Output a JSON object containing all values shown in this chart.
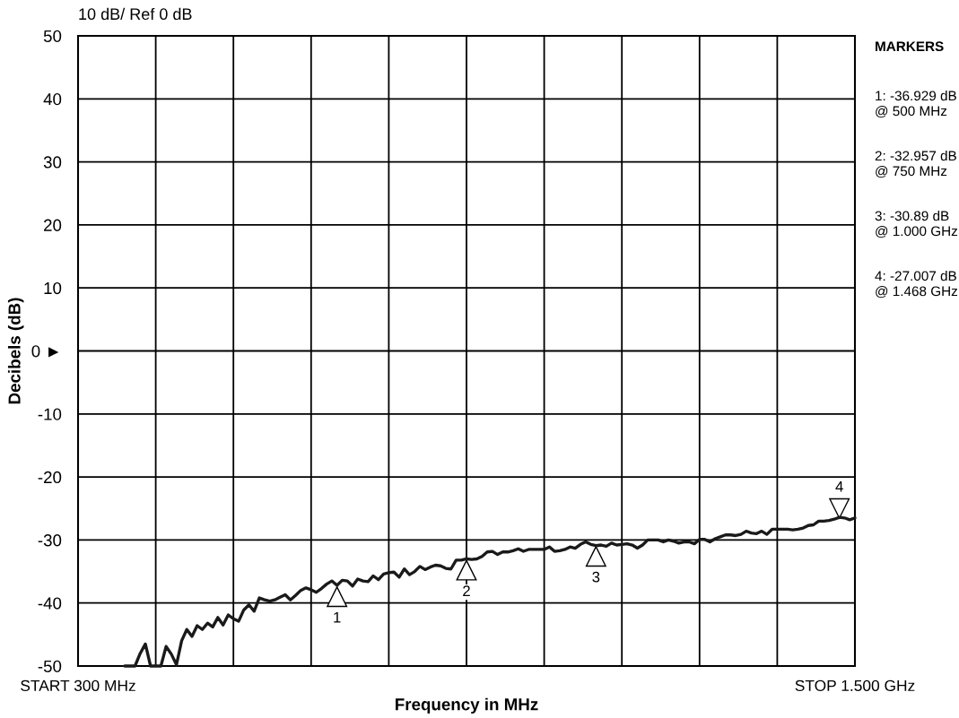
{
  "chart_data": {
    "type": "line",
    "title": "10 dB/ Ref 0 dB",
    "xlabel": "Frequency in MHz",
    "ylabel": "Decibels (dB)",
    "categories": [
      "START 300 MHz",
      null,
      null,
      null,
      null,
      null,
      null,
      null,
      null,
      null,
      null,
      null,
      null,
      null,
      null,
      null,
      null,
      null,
      null,
      null,
      null,
      null,
      null,
      null,
      null,
      null,
      null,
      null,
      null,
      null,
      null,
      null,
      null,
      null,
      null,
      null,
      null,
      null,
      null,
      null,
      null,
      null,
      null,
      null,
      null,
      null,
      null,
      null,
      null,
      null,
      null,
      null,
      null,
      null,
      null,
      null,
      null,
      null,
      null,
      null,
      null,
      null,
      null,
      null,
      null,
      null,
      null,
      null,
      null,
      null,
      null,
      null,
      null,
      null,
      null,
      null,
      null,
      null,
      null,
      null,
      null,
      null,
      null,
      null,
      null,
      null,
      null,
      null,
      null,
      null,
      null,
      null,
      null,
      null,
      null,
      null,
      null,
      null,
      null,
      null,
      null,
      null,
      null,
      null,
      null,
      null,
      null,
      null,
      null,
      null,
      null,
      null,
      null,
      null,
      null,
      null,
      null,
      null,
      null,
      null,
      null,
      null,
      null,
      null,
      null,
      null,
      null,
      null,
      null,
      null,
      null,
      null,
      null,
      null,
      null,
      null,
      null,
      null,
      null,
      null,
      null,
      null,
      null,
      null,
      null,
      null,
      null,
      null,
      null,
      null,
      "STOP 1.500 GHz"
    ],
    "ylim": [
      -50,
      50
    ],
    "yticks": [
      -50,
      -40,
      -30,
      -20,
      -10,
      {
        "value": 0,
        "label": "0 ►"
      },
      10,
      20,
      30,
      40,
      50
    ],
    "grid": true,
    "series": [
      {
        "color": "#1a1a1a",
        "values": [
          null,
          null,
          null,
          null,
          null,
          null,
          null,
          null,
          null,
          -50,
          -50,
          -50,
          -48.0,
          -46.5,
          -50,
          -50,
          -50,
          -46.9,
          -48.1,
          -49.8,
          -46.0,
          -44.2,
          -45.3,
          -43.6,
          -44.2,
          -43.2,
          -43.8,
          -42.3,
          -43.5,
          -41.9,
          -42.5,
          -42.9,
          -41.1,
          -40.3,
          -41.3,
          -39.2,
          -39.5,
          -39.7,
          -39.5,
          -39.1,
          -38.7,
          -39.5,
          -38.8,
          -38.0,
          -37.6,
          -37.9,
          -38.3,
          -37.7,
          -37.0,
          -36.5,
          -37.2,
          -36.4,
          -36.5,
          -37.3,
          -36.2,
          -36.5,
          -36.6,
          -35.7,
          -36.3,
          -35.4,
          -35.2,
          -35.1,
          -35.9,
          -34.6,
          -35.5,
          -35.0,
          -34.2,
          -34.7,
          -34.3,
          -34.0,
          -34.1,
          -34.5,
          -34.6,
          -33.2,
          -33.2,
          -33.0,
          -33.1,
          -33.0,
          -32.6,
          -31.9,
          -31.8,
          -32.3,
          -31.9,
          -31.9,
          -31.7,
          -31.4,
          -31.8,
          -31.5,
          -31.5,
          -31.5,
          -31.5,
          -31.1,
          -31.8,
          -31.7,
          -31.5,
          -31.1,
          -31.3,
          -30.7,
          -30.3,
          -30.7,
          -30.9,
          -30.8,
          -31.0,
          -30.5,
          -30.8,
          -30.7,
          -30.6,
          -30.8,
          -31.3,
          -30.8,
          -30.0,
          -30.0,
          -30.0,
          -30.3,
          -30.0,
          -30.2,
          -30.5,
          -30.3,
          -30.3,
          -30.6,
          -29.9,
          -29.9,
          -30.3,
          -29.8,
          -29.5,
          -29.2,
          -29.2,
          -29.3,
          -29.1,
          -28.6,
          -28.9,
          -29.0,
          -28.6,
          -29.1,
          -28.3,
          -28.3,
          -28.3,
          -28.3,
          -28.4,
          -28.3,
          -28.1,
          -27.7,
          -27.6,
          -27.0,
          -27.0,
          -26.9,
          -26.7,
          -26.4,
          -26.5,
          -26.8,
          -26.5
        ]
      },
      {
        "name": "1",
        "type": "scatter",
        "marker": "triangle",
        "color": "#000000",
        "values": [
          null,
          null,
          null,
          null,
          null,
          null,
          null,
          null,
          null,
          null,
          null,
          null,
          null,
          null,
          null,
          null,
          null,
          null,
          null,
          null,
          null,
          null,
          null,
          null,
          null,
          null,
          null,
          null,
          null,
          null,
          null,
          null,
          null,
          null,
          null,
          null,
          null,
          null,
          null,
          null,
          null,
          null,
          null,
          null,
          null,
          null,
          null,
          null,
          null,
          null,
          -39.0,
          null,
          null,
          null,
          null,
          null,
          null,
          null,
          null,
          null,
          null,
          null,
          null,
          null,
          null,
          null,
          null,
          null,
          null,
          null,
          null,
          null,
          null,
          null,
          null,
          null,
          null,
          null,
          null,
          null,
          null,
          null,
          null,
          null,
          null,
          null,
          null,
          null,
          null,
          null,
          null,
          null,
          null,
          null,
          null,
          null,
          null,
          null,
          null,
          null,
          null,
          null,
          null,
          null,
          null,
          null,
          null,
          null,
          null,
          null,
          null,
          null,
          null,
          null,
          null,
          null,
          null,
          null,
          null,
          null,
          null,
          null,
          null,
          null,
          null,
          null,
          null,
          null,
          null,
          null,
          null,
          null,
          null,
          null,
          null,
          null,
          null,
          null,
          null,
          null,
          null,
          null,
          null,
          null,
          null,
          null,
          null,
          null,
          null,
          null,
          null
        ]
      },
      {
        "name": "2",
        "type": "scatter",
        "marker": "triangle",
        "color": "#000000",
        "values": [
          null,
          null,
          null,
          null,
          null,
          null,
          null,
          null,
          null,
          null,
          null,
          null,
          null,
          null,
          null,
          null,
          null,
          null,
          null,
          null,
          null,
          null,
          null,
          null,
          null,
          null,
          null,
          null,
          null,
          null,
          null,
          null,
          null,
          null,
          null,
          null,
          null,
          null,
          null,
          null,
          null,
          null,
          null,
          null,
          null,
          null,
          null,
          null,
          null,
          null,
          null,
          null,
          null,
          null,
          null,
          null,
          null,
          null,
          null,
          null,
          null,
          null,
          null,
          null,
          null,
          null,
          null,
          null,
          null,
          null,
          null,
          null,
          null,
          null,
          null,
          -34.8,
          null,
          null,
          null,
          null,
          null,
          null,
          null,
          null,
          null,
          null,
          null,
          null,
          null,
          null,
          null,
          null,
          null,
          null,
          null,
          null,
          null,
          null,
          null,
          null,
          null,
          null,
          null,
          null,
          null,
          null,
          null,
          null,
          null,
          null,
          null,
          null,
          null,
          null,
          null,
          null,
          null,
          null,
          null,
          null,
          null,
          null,
          null,
          null,
          null,
          null,
          null,
          null,
          null,
          null,
          null,
          null,
          null,
          null,
          null,
          null,
          null,
          null,
          null,
          null,
          null,
          null,
          null,
          null,
          null,
          null,
          null,
          null,
          null,
          null,
          null
        ]
      },
      {
        "name": "3",
        "type": "scatter",
        "marker": "triangle",
        "color": "#000000",
        "values": [
          null,
          null,
          null,
          null,
          null,
          null,
          null,
          null,
          null,
          null,
          null,
          null,
          null,
          null,
          null,
          null,
          null,
          null,
          null,
          null,
          null,
          null,
          null,
          null,
          null,
          null,
          null,
          null,
          null,
          null,
          null,
          null,
          null,
          null,
          null,
          null,
          null,
          null,
          null,
          null,
          null,
          null,
          null,
          null,
          null,
          null,
          null,
          null,
          null,
          null,
          null,
          null,
          null,
          null,
          null,
          null,
          null,
          null,
          null,
          null,
          null,
          null,
          null,
          null,
          null,
          null,
          null,
          null,
          null,
          null,
          null,
          null,
          null,
          null,
          null,
          null,
          null,
          null,
          null,
          null,
          null,
          null,
          null,
          null,
          null,
          null,
          null,
          null,
          null,
          null,
          null,
          null,
          null,
          null,
          null,
          null,
          null,
          null,
          null,
          null,
          -32.6,
          null,
          null,
          null,
          null,
          null,
          null,
          null,
          null,
          null,
          null,
          null,
          null,
          null,
          null,
          null,
          null,
          null,
          null,
          null,
          null,
          null,
          null,
          null,
          null,
          null,
          null,
          null,
          null,
          null,
          null,
          null,
          null,
          null,
          null,
          null,
          null,
          null,
          null,
          null,
          null,
          null,
          null,
          null,
          null,
          null,
          null,
          null,
          null,
          null,
          null
        ]
      },
      {
        "name": "4",
        "type": "scatter",
        "marker": "triangle",
        "color": "#000000",
        "values": [
          null,
          null,
          null,
          null,
          null,
          null,
          null,
          null,
          null,
          null,
          null,
          null,
          null,
          null,
          null,
          null,
          null,
          null,
          null,
          null,
          null,
          null,
          null,
          null,
          null,
          null,
          null,
          null,
          null,
          null,
          null,
          null,
          null,
          null,
          null,
          null,
          null,
          null,
          null,
          null,
          null,
          null,
          null,
          null,
          null,
          null,
          null,
          null,
          null,
          null,
          null,
          null,
          null,
          null,
          null,
          null,
          null,
          null,
          null,
          null,
          null,
          null,
          null,
          null,
          null,
          null,
          null,
          null,
          null,
          null,
          null,
          null,
          null,
          null,
          null,
          null,
          null,
          null,
          null,
          null,
          null,
          null,
          null,
          null,
          null,
          null,
          null,
          null,
          null,
          null,
          null,
          null,
          null,
          null,
          null,
          null,
          null,
          null,
          null,
          null,
          null,
          null,
          null,
          null,
          null,
          null,
          null,
          null,
          null,
          null,
          null,
          null,
          null,
          null,
          null,
          null,
          null,
          null,
          null,
          null,
          null,
          null,
          null,
          null,
          null,
          null,
          null,
          null,
          null,
          null,
          null,
          null,
          null,
          null,
          null,
          null,
          null,
          null,
          null,
          null,
          null,
          null,
          null,
          null,
          null,
          null,
          null,
          -25.0,
          null,
          null,
          null
        ]
      }
    ],
    "annotations": [
      "MARKERS",
      "1: -36.929 dB\n@ 500 MHz",
      "2: -32.957 dB\n@ 750 MHz",
      "3: -30.89 dB\n@ 1.000 GHz",
      "4: -27.007 dB\n@ 1.468 GHz"
    ]
  }
}
